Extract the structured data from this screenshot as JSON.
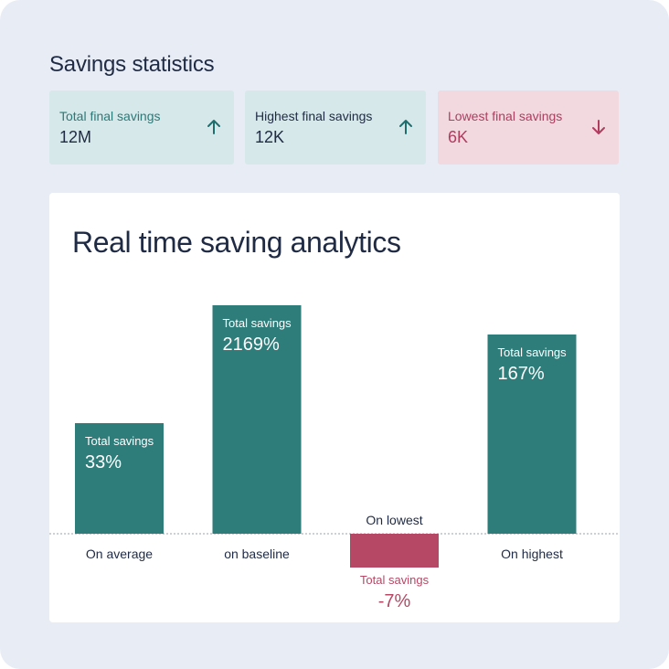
{
  "header": {
    "title": "Savings statistics"
  },
  "stats": [
    {
      "label": "Total final savings",
      "value": "12M",
      "trend": "up",
      "icon": "arrow-up-icon"
    },
    {
      "label": "Highest final savings",
      "value": "12K",
      "trend": "up",
      "icon": "arrow-up-icon"
    },
    {
      "label": "Lowest final savings",
      "value": "6K",
      "trend": "down",
      "icon": "arrow-down-icon"
    }
  ],
  "colors": {
    "positive": "#2e7d7a",
    "negative": "#b64865",
    "positive_card": "#d6e8ea",
    "negative_card": "#f2d9df",
    "background": "#e8edf5",
    "text": "#1f2a44"
  },
  "chart_data": {
    "type": "bar",
    "title": "Real time saving analytics",
    "categories": [
      "On average",
      "on baseline",
      "On lowest",
      "On highest"
    ],
    "values": [
      33,
      2169,
      -7,
      167
    ],
    "value_labels": [
      "33%",
      "2169%",
      "-7%",
      "167%"
    ],
    "series_label": "Total savings",
    "baseline": 0,
    "grid": false,
    "legend": "none"
  }
}
